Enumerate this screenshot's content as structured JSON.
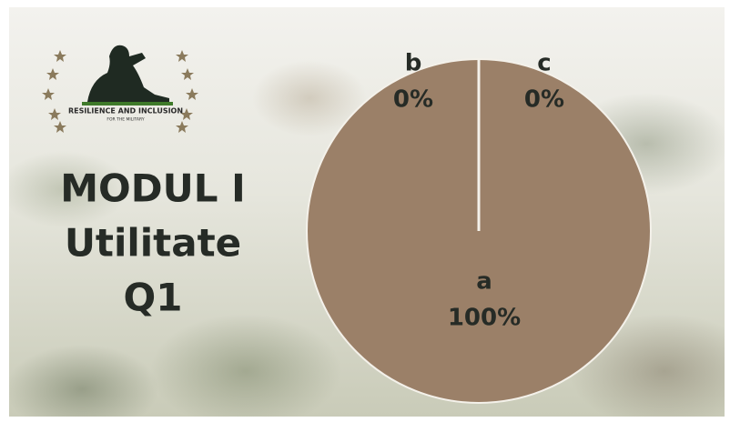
{
  "slide": {
    "title_lines": [
      "MODUL I",
      "Utilitate",
      "Q1"
    ],
    "logo": {
      "line1": "RESILIENCE AND INCLUSION",
      "line2": "FOR THE MILITARY"
    }
  },
  "chart_data": {
    "type": "pie",
    "categories": [
      "a",
      "b",
      "c"
    ],
    "values": [
      100,
      0,
      0
    ],
    "value_labels": [
      "100%",
      "0%",
      "0%"
    ],
    "colors": [
      "#9b8068",
      "#9b8068",
      "#9b8068"
    ]
  }
}
